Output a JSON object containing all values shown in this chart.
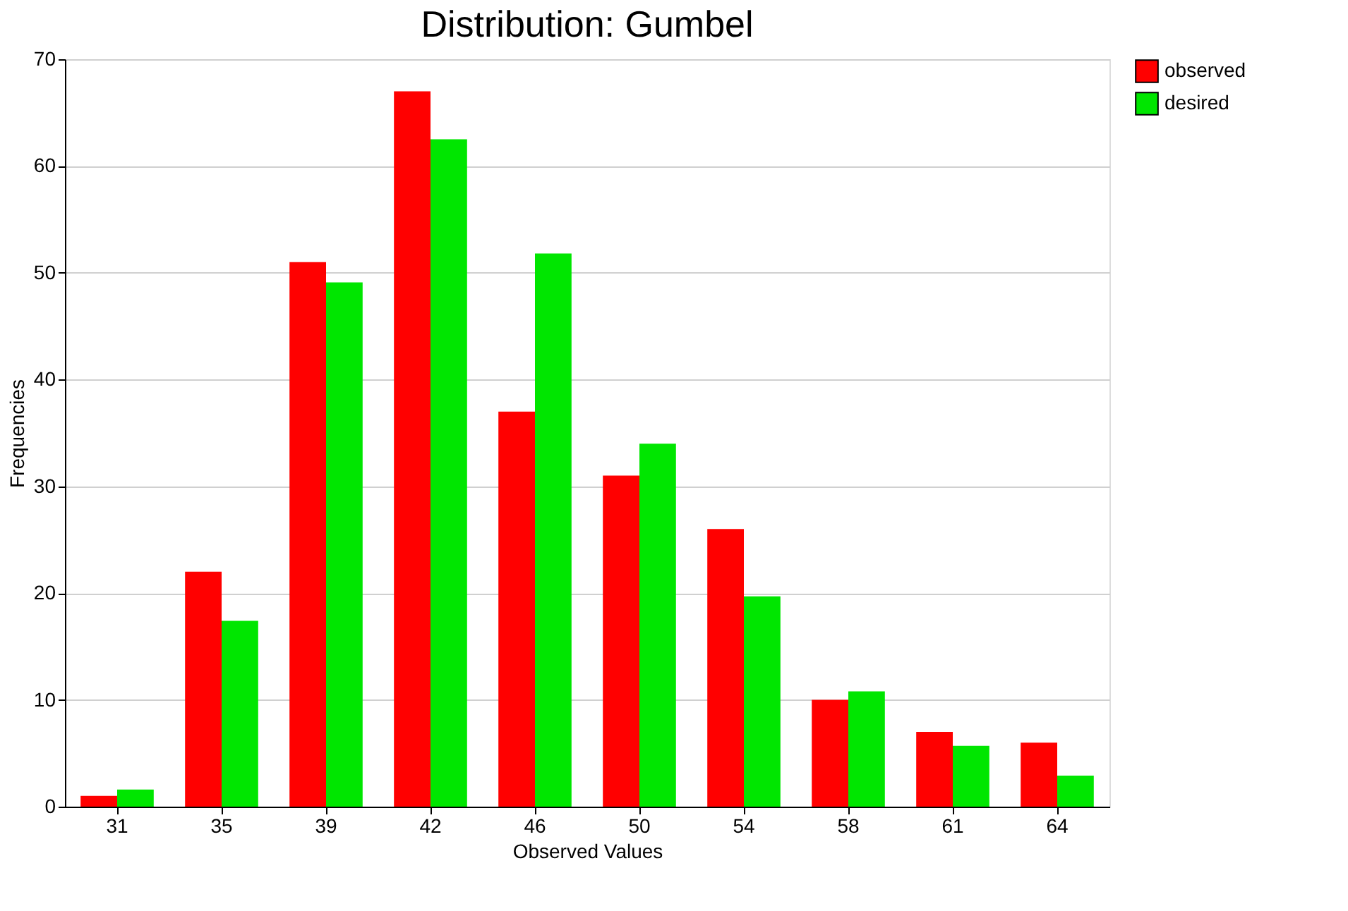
{
  "chart_data": {
    "type": "bar",
    "title": "Distribution: Gumbel",
    "xlabel": "Observed Values",
    "ylabel": "Frequencies",
    "categories": [
      "31",
      "35",
      "39",
      "42",
      "46",
      "50",
      "54",
      "58",
      "61",
      "64"
    ],
    "series": [
      {
        "name": "observed",
        "color": "#ff0000",
        "values": [
          1,
          22,
          51,
          67,
          37,
          31,
          26,
          10,
          7,
          6
        ]
      },
      {
        "name": "desired",
        "color": "#00e600",
        "values": [
          1.6,
          17.4,
          49.1,
          62.5,
          51.8,
          34,
          19.7,
          10.8,
          5.7,
          2.9
        ]
      }
    ],
    "ylim": [
      0,
      70
    ],
    "yticks": [
      0,
      10,
      20,
      30,
      40,
      50,
      60,
      70
    ],
    "grid": "y",
    "legend": "top right"
  }
}
